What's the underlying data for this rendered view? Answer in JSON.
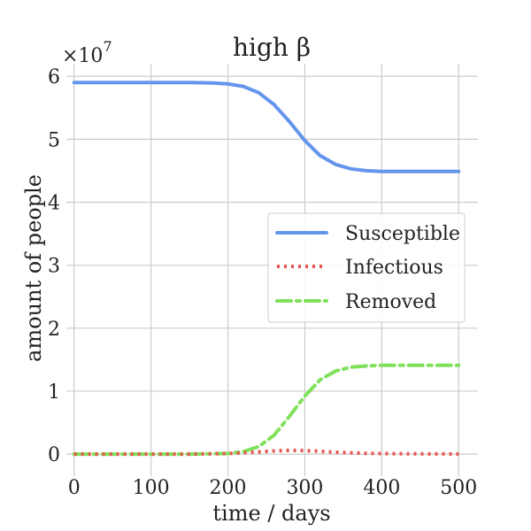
{
  "chart_data": {
    "type": "line",
    "title": "high β",
    "xlabel": "time / days",
    "ylabel": "amount of people",
    "y_offset_label": "×10",
    "y_offset_exponent": "7",
    "xlim": [
      -10,
      525
    ],
    "ylim": [
      -0.35,
      6.2
    ],
    "x_ticks": [
      0,
      100,
      200,
      300,
      400,
      500
    ],
    "y_ticks": [
      0,
      1,
      2,
      3,
      4,
      5,
      6
    ],
    "grid": true,
    "legend_position": "center-right",
    "x": [
      0,
      50,
      100,
      150,
      180,
      200,
      220,
      240,
      260,
      280,
      300,
      320,
      340,
      360,
      380,
      400,
      450,
      500
    ],
    "series": [
      {
        "name": "Susceptible",
        "color": "#6495ED",
        "style": "solid",
        "values": [
          5.9,
          5.9,
          5.9,
          5.9,
          5.895,
          5.88,
          5.84,
          5.74,
          5.55,
          5.28,
          4.98,
          4.74,
          4.6,
          4.53,
          4.5,
          4.49,
          4.49,
          4.49
        ]
      },
      {
        "name": "Infectious",
        "color": "#E8554E",
        "style": "dotted",
        "values": [
          0,
          0,
          0,
          0,
          0.005,
          0.01,
          0.02,
          0.035,
          0.05,
          0.06,
          0.055,
          0.045,
          0.03,
          0.02,
          0.012,
          0.008,
          0.004,
          0.002
        ]
      },
      {
        "name": "Removed",
        "color": "#7FE05A",
        "style": "dashdot",
        "values": [
          0,
          0,
          0,
          0,
          0.005,
          0.01,
          0.04,
          0.12,
          0.3,
          0.6,
          0.92,
          1.18,
          1.32,
          1.38,
          1.4,
          1.41,
          1.41,
          1.41
        ]
      }
    ]
  }
}
